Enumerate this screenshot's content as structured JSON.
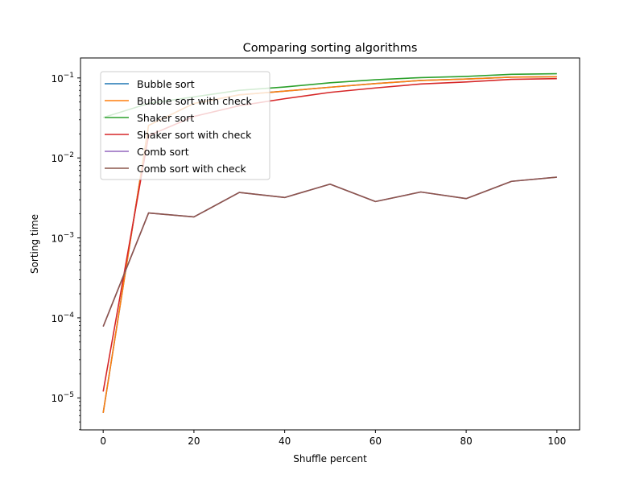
{
  "chart_data": {
    "type": "line",
    "title": "Comparing sorting algorithms",
    "xlabel": "Shuffle percent",
    "ylabel": "Sorting time",
    "xlim": [
      -5,
      105
    ],
    "ylim": [
      3.98e-06,
      0.1778
    ],
    "yscale": "log",
    "xticks": [
      0,
      20,
      40,
      60,
      80,
      100
    ],
    "xtick_labels": [
      "0",
      "20",
      "40",
      "60",
      "80",
      "100"
    ],
    "yticks": [
      1e-05,
      0.0001,
      0.001,
      0.01,
      0.1
    ],
    "ytick_labels": [
      {
        "base": "10",
        "exp": "−5"
      },
      {
        "base": "10",
        "exp": "−4"
      },
      {
        "base": "10",
        "exp": "−3"
      },
      {
        "base": "10",
        "exp": "−2"
      },
      {
        "base": "10",
        "exp": "−1"
      }
    ],
    "grid": false,
    "legend_position": "upper-left",
    "x": [
      0,
      10,
      20,
      30,
      40,
      50,
      60,
      70,
      80,
      90,
      100
    ],
    "series": [
      {
        "name": "Bubble sort",
        "color": "#1f77b4",
        "values": [
          6.5e-06,
          0.0255,
          0.048,
          0.0615,
          0.0685,
          0.0765,
          0.085,
          0.093,
          0.097,
          0.1025,
          0.1035
        ]
      },
      {
        "name": "Bubble sort with check",
        "color": "#ff7f0e",
        "values": [
          6.5e-06,
          0.0255,
          0.048,
          0.0615,
          0.0685,
          0.0765,
          0.085,
          0.093,
          0.097,
          0.1025,
          0.1035
        ]
      },
      {
        "name": "Shaker sort",
        "color": "#2ca02c",
        "values": [
          0.032,
          0.048,
          0.058,
          0.07,
          0.077,
          0.087,
          0.095,
          0.101,
          0.1045,
          0.111,
          0.113
        ]
      },
      {
        "name": "Shaker sort with check",
        "color": "#d62728",
        "values": [
          1.2e-05,
          0.019,
          0.033,
          0.045,
          0.055,
          0.066,
          0.075,
          0.084,
          0.089,
          0.096,
          0.098
        ]
      },
      {
        "name": "Comb sort",
        "color": "#9467bd",
        "values": [
          7.8e-05,
          0.00205,
          0.00183,
          0.0037,
          0.0032,
          0.0047,
          0.00285,
          0.00375,
          0.0031,
          0.0051,
          0.00575
        ]
      },
      {
        "name": "Comb sort with check",
        "color": "#8c564b",
        "values": [
          7.8e-05,
          0.00205,
          0.00183,
          0.0037,
          0.0032,
          0.0047,
          0.00285,
          0.00375,
          0.0031,
          0.0051,
          0.00575
        ]
      }
    ]
  }
}
